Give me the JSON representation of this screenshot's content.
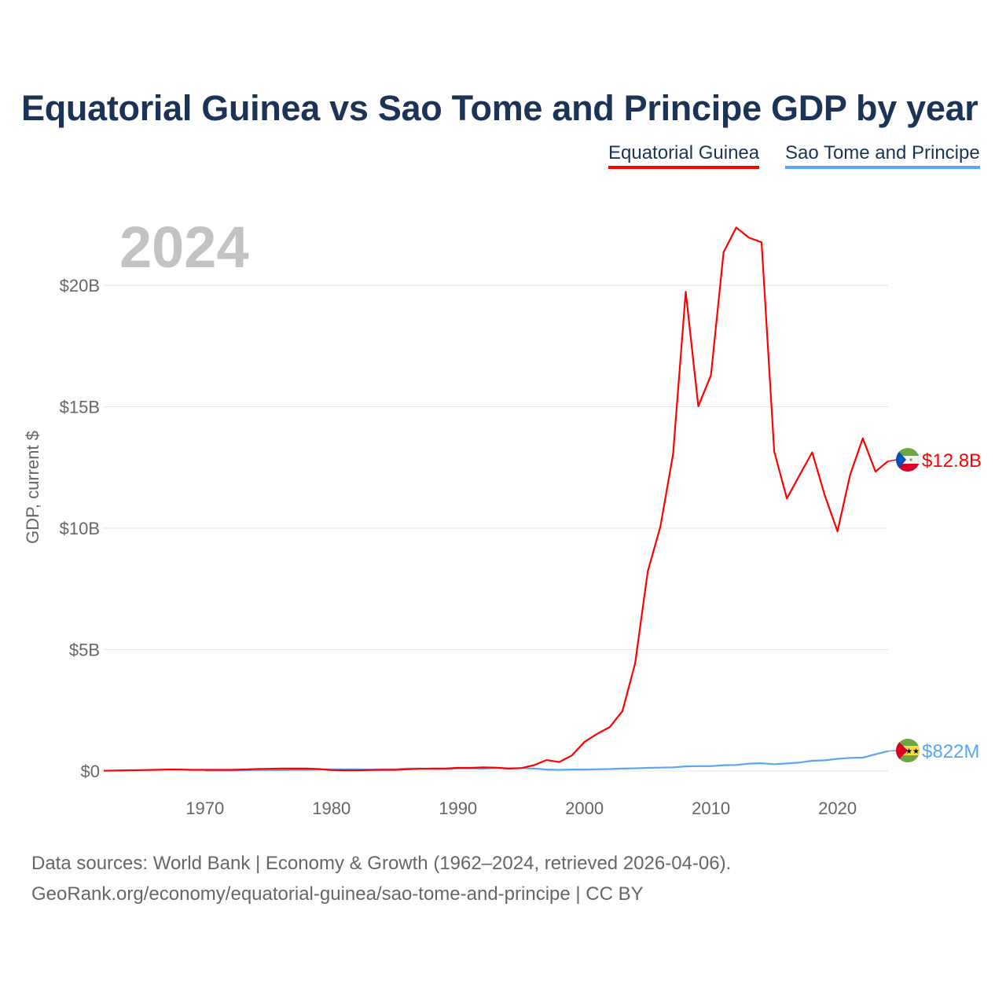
{
  "chart_data": {
    "type": "line",
    "title": "Equatorial Guinea vs Sao Tome and Principe GDP by year",
    "year_overlay": "2024",
    "ylabel": "GDP, current $",
    "xlabel": "",
    "xlim": [
      1962,
      2024
    ],
    "ylim": [
      0,
      23
    ],
    "x_ticks": [
      1970,
      1980,
      1990,
      2000,
      2010,
      2020
    ],
    "x_tick_labels": [
      "1970",
      "1980",
      "1990",
      "2000",
      "2010",
      "2020"
    ],
    "y_ticks": [
      0,
      5,
      10,
      15,
      20
    ],
    "y_tick_labels": [
      "$0",
      "$5B",
      "$10B",
      "$15B",
      "$20B"
    ],
    "grid": true,
    "legend_placement": "top-right",
    "series": [
      {
        "name": "Equatorial Guinea",
        "color": "#ff0000",
        "end_label": "$12.8B",
        "flag": "equatorial-guinea-flag",
        "start_year": 1962,
        "values_billion": [
          0.01,
          0.02,
          0.03,
          0.04,
          0.05,
          0.06,
          0.06,
          0.05,
          0.05,
          0.05,
          0.05,
          0.06,
          0.08,
          0.09,
          0.1,
          0.1,
          0.1,
          0.08,
          0.04,
          0.03,
          0.03,
          0.04,
          0.05,
          0.05,
          0.07,
          0.09,
          0.1,
          0.1,
          0.13,
          0.13,
          0.15,
          0.14,
          0.1,
          0.12,
          0.24,
          0.45,
          0.37,
          0.64,
          1.2,
          1.53,
          1.81,
          2.47,
          4.43,
          8.22,
          10.07,
          13.05,
          19.73,
          15.02,
          16.3,
          21.37,
          22.38,
          21.96,
          21.77,
          13.16,
          11.22,
          12.18,
          13.12,
          11.34,
          9.87,
          12.2,
          13.7,
          12.33,
          12.76
        ]
      },
      {
        "name": "Sao Tome and Principe",
        "color": "#5aa6f0",
        "end_label": "$822M",
        "flag": "sao-tome-and-principe-flag",
        "start_year": 1970,
        "values_billion": [
          0.02,
          0.02,
          0.02,
          0.03,
          0.04,
          0.04,
          0.04,
          0.05,
          0.05,
          0.06,
          0.07,
          0.07,
          0.07,
          0.06,
          0.07,
          0.07,
          0.1,
          0.1,
          0.09,
          0.09,
          0.11,
          0.11,
          0.1,
          0.12,
          0.11,
          0.12,
          0.1,
          0.06,
          0.05,
          0.06,
          0.06,
          0.07,
          0.08,
          0.1,
          0.11,
          0.13,
          0.14,
          0.15,
          0.19,
          0.2,
          0.2,
          0.24,
          0.25,
          0.3,
          0.32,
          0.28,
          0.31,
          0.35,
          0.42,
          0.44,
          0.5,
          0.54,
          0.55,
          0.69,
          0.82
        ]
      }
    ]
  },
  "footer": {
    "source_line1": "Data sources: World Bank | Economy & Growth (1962–2024, retrieved 2026-04-06).",
    "source_line2": "GeoRank.org/economy/equatorial-guinea/sao-tome-and-principe | CC BY"
  }
}
